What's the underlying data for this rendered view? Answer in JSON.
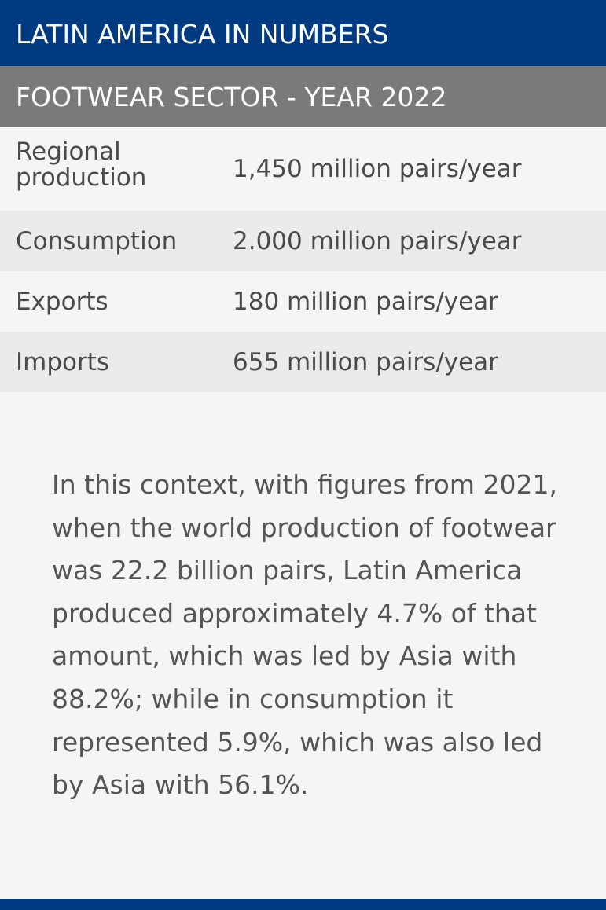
{
  "header": {
    "title": "LATIN AMERICA IN NUMBERS",
    "subtitle": "FOOTWEAR SECTOR - YEAR 2022"
  },
  "table": {
    "rows": [
      [
        "Regional production",
        "1,450 million pairs/year"
      ],
      [
        "Consumption",
        "2.000 million pairs/year"
      ],
      [
        "Exports",
        "180 million pairs/year"
      ],
      [
        "Imports",
        "655 million pairs/year"
      ]
    ]
  },
  "paragraph": "In this context, with figures from 2021, when the world production of footwear was 22.2 billion pairs, Latin America produced approximately 4.7% of that amount, which was led by Asia with 88.2%; while in consumption it represented 5.9%, which was also led by Asia with 56.1%."
}
